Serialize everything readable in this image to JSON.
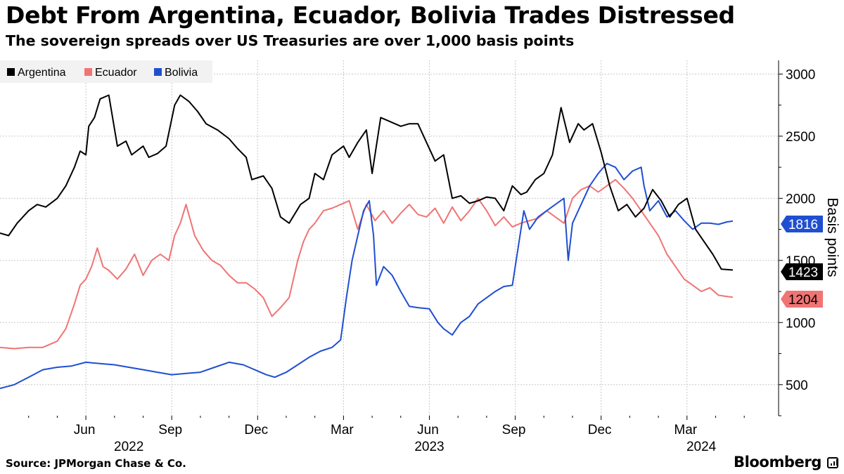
{
  "title": "Debt From Argentina, Ecuador, Bolivia Trades Distressed",
  "subtitle": "The sovereign spreads over US Treasuries are over 1,000 basis points",
  "source": "Source: JPMorgan Chase & Co.",
  "brand": "Bloomberg",
  "chart_data": {
    "type": "line",
    "ylabel": "Basis points",
    "ylim": [
      250,
      3110
    ],
    "yticks": [
      500,
      1000,
      1500,
      2000,
      2500,
      3000
    ],
    "grid": true,
    "legend_position": "top-left",
    "x_range": [
      0,
      27.2
    ],
    "x_unit": "months since 2022-03-01",
    "month_ticks": [
      {
        "x": 3,
        "label": "Jun"
      },
      {
        "x": 6,
        "label": "Sep"
      },
      {
        "x": 9,
        "label": "Dec"
      },
      {
        "x": 12,
        "label": "Mar"
      },
      {
        "x": 15,
        "label": "Jun"
      },
      {
        "x": 18,
        "label": "Sep"
      },
      {
        "x": 21,
        "label": "Dec"
      },
      {
        "x": 24,
        "label": "Mar"
      }
    ],
    "year_labels": [
      {
        "x": 4.5,
        "label": "2022"
      },
      {
        "x": 15,
        "label": "2023"
      },
      {
        "x": 24.5,
        "label": "2024"
      }
    ],
    "series": [
      {
        "name": "Argentina",
        "color": "#000000",
        "last_value": "1423",
        "label_bg": "#000000",
        "label_fg": "#ffffff",
        "x": [
          0,
          0.3,
          0.6,
          1.0,
          1.3,
          1.6,
          2.0,
          2.3,
          2.6,
          2.8,
          3.0,
          3.1,
          3.3,
          3.5,
          3.8,
          4.1,
          4.4,
          4.6,
          5.0,
          5.2,
          5.5,
          5.8,
          6.1,
          6.3,
          6.6,
          6.9,
          7.2,
          7.6,
          8.0,
          8.3,
          8.6,
          8.8,
          9.2,
          9.5,
          9.8,
          10.1,
          10.5,
          10.8,
          11.0,
          11.3,
          11.6,
          12.0,
          12.2,
          12.5,
          12.8,
          13.0,
          13.3,
          13.6,
          14.0,
          14.3,
          14.6,
          14.9,
          15.2,
          15.5,
          15.8,
          16.1,
          16.4,
          16.7,
          17.0,
          17.3,
          17.6,
          17.9,
          18.2,
          18.4,
          18.7,
          19.0,
          19.3,
          19.6,
          19.9,
          20.2,
          20.4,
          20.7,
          21.0,
          21.3,
          21.6,
          21.9,
          22.2,
          22.5,
          22.8,
          23.1,
          23.4,
          23.7,
          24.0,
          24.3,
          24.6,
          24.9,
          25.2,
          25.6
        ],
        "y": [
          1720,
          1700,
          1800,
          1900,
          1950,
          1930,
          2000,
          2100,
          2250,
          2380,
          2350,
          2580,
          2650,
          2800,
          2830,
          2420,
          2460,
          2350,
          2420,
          2330,
          2360,
          2420,
          2750,
          2830,
          2780,
          2700,
          2600,
          2550,
          2480,
          2400,
          2330,
          2150,
          2180,
          2080,
          1850,
          1800,
          1950,
          2000,
          2200,
          2150,
          2350,
          2420,
          2330,
          2450,
          2550,
          2200,
          2650,
          2620,
          2580,
          2600,
          2600,
          2450,
          2300,
          2350,
          2000,
          2020,
          1960,
          1980,
          2010,
          2000,
          1900,
          2100,
          2030,
          2050,
          2150,
          2200,
          2350,
          2730,
          2450,
          2600,
          2550,
          2600,
          2370,
          2100,
          1900,
          1950,
          1850,
          1920,
          2070,
          1980,
          1850,
          1950,
          2000,
          1750,
          1650,
          1550,
          1430,
          1423
        ]
      },
      {
        "name": "Ecuador",
        "color": "#f07474",
        "last_value": "1204",
        "label_bg": "#f07474",
        "label_fg": "#000000",
        "x": [
          0,
          0.5,
          1.0,
          1.5,
          2.0,
          2.3,
          2.6,
          2.8,
          3.0,
          3.2,
          3.4,
          3.6,
          3.8,
          4.1,
          4.4,
          4.7,
          5.0,
          5.3,
          5.6,
          5.9,
          6.1,
          6.3,
          6.5,
          6.8,
          7.1,
          7.4,
          7.7,
          8.0,
          8.3,
          8.6,
          8.9,
          9.2,
          9.5,
          9.8,
          10.1,
          10.4,
          10.6,
          10.8,
          11.0,
          11.3,
          11.6,
          11.9,
          12.2,
          12.5,
          12.8,
          13.1,
          13.4,
          13.7,
          14.0,
          14.3,
          14.6,
          14.9,
          15.2,
          15.5,
          15.8,
          16.1,
          16.4,
          16.7,
          17.0,
          17.3,
          17.6,
          17.9,
          18.2,
          18.5,
          18.8,
          19.1,
          19.4,
          19.7,
          20.0,
          20.3,
          20.6,
          20.9,
          21.2,
          21.5,
          21.8,
          22.1,
          22.4,
          22.7,
          23.0,
          23.3,
          23.6,
          23.9,
          24.2,
          24.5,
          24.8,
          25.1,
          25.4,
          25.6
        ],
        "y": [
          800,
          790,
          800,
          800,
          850,
          950,
          1150,
          1300,
          1350,
          1450,
          1600,
          1450,
          1420,
          1350,
          1430,
          1550,
          1380,
          1500,
          1550,
          1500,
          1700,
          1800,
          1950,
          1700,
          1580,
          1500,
          1460,
          1380,
          1320,
          1320,
          1270,
          1200,
          1050,
          1120,
          1200,
          1500,
          1650,
          1750,
          1800,
          1900,
          1920,
          1950,
          1980,
          1750,
          1950,
          1820,
          1900,
          1800,
          1880,
          1950,
          1870,
          1850,
          1920,
          1800,
          1930,
          1820,
          1900,
          2000,
          1900,
          1780,
          1850,
          1770,
          1800,
          1820,
          1840,
          1900,
          1850,
          1800,
          2000,
          2070,
          2100,
          2050,
          2100,
          2150,
          2080,
          2000,
          1900,
          1800,
          1700,
          1550,
          1450,
          1350,
          1300,
          1250,
          1280,
          1220,
          1210,
          1204
        ]
      },
      {
        "name": "Bolivia",
        "color": "#1f4fd1",
        "last_value": "1816",
        "label_bg": "#1f4fd1",
        "label_fg": "#ffffff",
        "x": [
          0,
          0.5,
          1.0,
          1.5,
          2.0,
          2.5,
          3.0,
          3.5,
          4.0,
          4.5,
          5.0,
          5.5,
          6.0,
          6.5,
          7.0,
          7.5,
          8.0,
          8.5,
          9.0,
          9.3,
          9.6,
          10.0,
          10.4,
          10.8,
          11.2,
          11.6,
          11.9,
          12.1,
          12.3,
          12.5,
          12.7,
          12.9,
          13.05,
          13.15,
          13.4,
          13.7,
          14.0,
          14.3,
          14.6,
          15.0,
          15.3,
          15.5,
          15.8,
          16.1,
          16.4,
          16.7,
          17.0,
          17.3,
          17.6,
          17.9,
          18.1,
          18.3,
          18.5,
          18.8,
          19.1,
          19.4,
          19.7,
          19.85,
          20.0,
          20.3,
          20.6,
          20.9,
          21.2,
          21.5,
          21.8,
          22.1,
          22.4,
          22.5,
          22.7,
          23.0,
          23.3,
          23.6,
          23.9,
          24.2,
          24.5,
          24.8,
          25.1,
          25.4,
          25.6
        ],
        "y": [
          470,
          500,
          560,
          620,
          640,
          650,
          680,
          670,
          660,
          640,
          620,
          600,
          580,
          590,
          600,
          640,
          680,
          660,
          610,
          580,
          560,
          600,
          660,
          720,
          770,
          800,
          860,
          1200,
          1500,
          1700,
          1900,
          1980,
          1700,
          1300,
          1450,
          1380,
          1250,
          1130,
          1120,
          1110,
          1000,
          950,
          900,
          1000,
          1050,
          1150,
          1200,
          1250,
          1290,
          1300,
          1600,
          1900,
          1750,
          1850,
          1900,
          1950,
          2000,
          1500,
          1800,
          1950,
          2100,
          2200,
          2280,
          2250,
          2150,
          2220,
          2250,
          2100,
          1900,
          1980,
          1850,
          1900,
          1820,
          1750,
          1800,
          1800,
          1790,
          1810,
          1816
        ]
      }
    ]
  }
}
